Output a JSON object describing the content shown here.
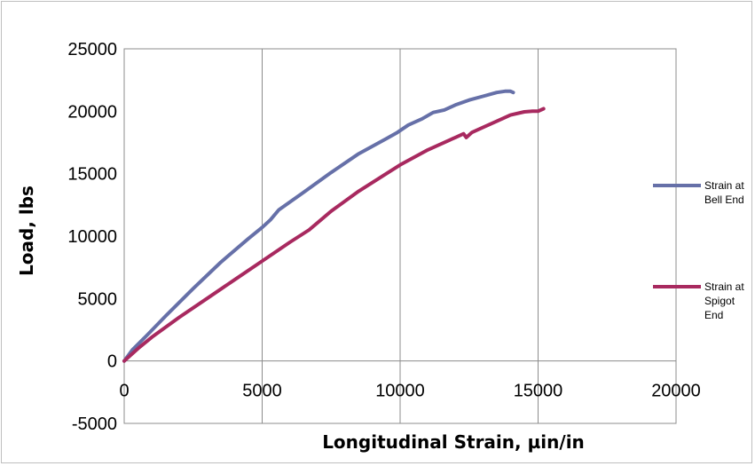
{
  "chart_data": {
    "type": "line",
    "title": "",
    "xlabel": "Longitudinal Strain, µin/in",
    "ylabel": "Load, lbs",
    "xlim": [
      0,
      20000
    ],
    "ylim": [
      -5000,
      25000
    ],
    "xticks": [
      "0",
      "5000",
      "10000",
      "15000",
      "20000"
    ],
    "yticks": [
      "-5000",
      "0",
      "5000",
      "10000",
      "15000",
      "20000",
      "25000"
    ],
    "grid": "vertical",
    "legend_position": "right",
    "series": [
      {
        "name": "Strain at Bell End",
        "legend_lines": [
          "Strain at",
          "Bell End"
        ],
        "color": "#6670a8",
        "x": [
          0,
          300,
          800,
          1500,
          2500,
          3500,
          4500,
          5000,
          5300,
          5600,
          6500,
          7500,
          8500,
          9500,
          9900,
          10300,
          10800,
          11200,
          11600,
          12000,
          12500,
          13000,
          13500,
          13800,
          14000,
          14100
        ],
        "y": [
          0,
          900,
          2000,
          3600,
          5800,
          7900,
          9800,
          10700,
          11300,
          12100,
          13500,
          15100,
          16600,
          17800,
          18300,
          18900,
          19400,
          19900,
          20100,
          20500,
          20900,
          21200,
          21500,
          21600,
          21600,
          21500
        ]
      },
      {
        "name": "Strain at Spigot End",
        "legend_lines": [
          "Strain at",
          "Spigot",
          "End"
        ],
        "color": "#a8295f",
        "x": [
          0,
          500,
          1000,
          2000,
          3000,
          4000,
          5000,
          6000,
          6700,
          7500,
          8500,
          9500,
          10000,
          11000,
          12000,
          12300,
          12400,
          12600,
          13000,
          13500,
          14000,
          14500,
          14800,
          15000,
          15200
        ],
        "y": [
          0,
          1000,
          1900,
          3500,
          5000,
          6500,
          8000,
          9500,
          10500,
          12000,
          13600,
          15000,
          15700,
          16900,
          17900,
          18200,
          17900,
          18300,
          18700,
          19200,
          19700,
          19950,
          20000,
          20000,
          20200
        ]
      }
    ]
  }
}
